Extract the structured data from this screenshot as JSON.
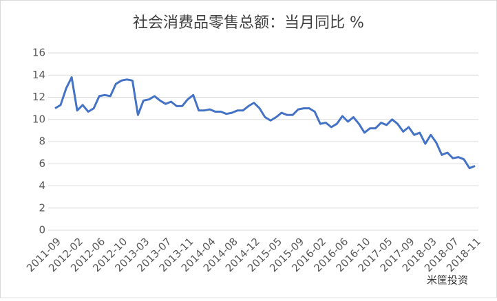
{
  "chart_data": {
    "type": "line",
    "title": "社会消费品零售总额：当月同比 %",
    "watermark": "米筐投资",
    "categories": [
      "2011-09",
      null,
      null,
      null,
      "2012-02",
      null,
      null,
      null,
      "2012-06",
      null,
      null,
      null,
      "2012-10",
      null,
      null,
      null,
      "2013-03",
      null,
      null,
      null,
      "2013-07",
      null,
      null,
      null,
      "2013-11",
      null,
      null,
      null,
      "2014-04",
      null,
      null,
      null,
      "2014-08",
      null,
      null,
      null,
      "2014-12",
      null,
      null,
      null,
      "2015-05",
      null,
      null,
      null,
      "2015-09",
      null,
      null,
      null,
      "2016-02",
      null,
      null,
      null,
      "2016-06",
      null,
      null,
      null,
      "2016-10",
      null,
      null,
      null,
      "2017-05",
      null,
      null,
      null,
      "2017-09",
      null,
      null,
      null,
      "2018-03",
      null,
      null,
      null,
      "2018-07",
      null,
      null,
      null,
      "2018-11"
    ],
    "values": [
      11.0,
      11.3,
      12.8,
      13.8,
      10.8,
      11.3,
      10.7,
      11.0,
      12.1,
      12.2,
      12.1,
      13.2,
      13.5,
      13.6,
      13.5,
      10.4,
      11.7,
      11.8,
      12.1,
      11.7,
      11.4,
      11.6,
      11.2,
      11.2,
      11.8,
      12.2,
      10.8,
      10.8,
      10.9,
      10.7,
      10.7,
      10.5,
      10.6,
      10.8,
      10.8,
      11.2,
      11.5,
      11.0,
      10.2,
      9.9,
      10.2,
      10.6,
      10.4,
      10.4,
      10.9,
      11.0,
      11.0,
      10.7,
      9.6,
      9.7,
      9.3,
      9.6,
      10.3,
      9.8,
      10.2,
      9.6,
      8.8,
      9.2,
      9.2,
      9.7,
      9.5,
      10.0,
      9.6,
      8.9,
      9.3,
      8.6,
      8.8,
      7.8,
      8.6,
      7.9,
      6.8,
      7.0,
      6.5,
      6.6,
      6.4,
      5.6,
      5.8
    ],
    "color": "#4472c4",
    "ylim": [
      0,
      16
    ],
    "yticks": [
      0,
      2,
      4,
      6,
      8,
      10,
      12,
      14,
      16
    ],
    "grid": true
  }
}
